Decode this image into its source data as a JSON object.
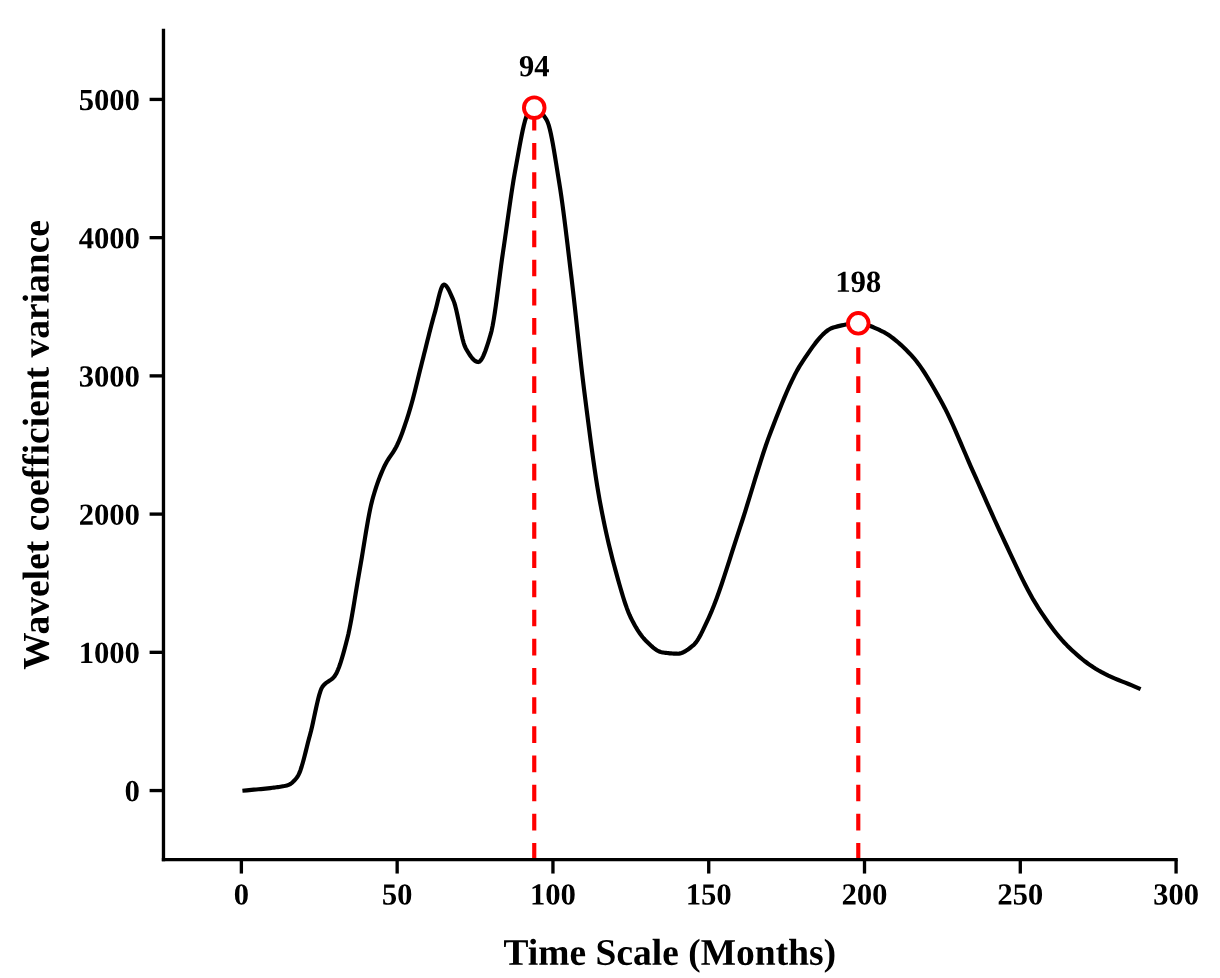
{
  "chart_data": {
    "type": "line",
    "xlabel": "Time Scale (Months)",
    "ylabel": "Wavelet coefficient variance",
    "xlim": [
      -25,
      300
    ],
    "xticks": [
      0,
      50,
      100,
      150,
      200,
      250,
      300
    ],
    "ylim": [
      -500,
      5500
    ],
    "yticks": [
      0,
      1000,
      2000,
      3000,
      4000,
      5000
    ],
    "grid": false,
    "legend": false,
    "series": [
      {
        "color": "#000000",
        "line_style": "solid",
        "x": [
          1,
          10,
          15,
          18,
          22,
          26,
          30,
          34,
          38,
          42,
          46,
          50,
          54,
          58,
          62,
          65,
          68,
          72,
          76,
          80,
          84,
          88,
          92,
          94,
          98,
          102,
          106,
          110,
          115,
          120,
          125,
          130,
          135,
          140,
          145,
          150,
          160,
          170,
          180,
          190,
          198,
          205,
          215,
          225,
          235,
          245,
          255,
          265,
          275,
          288
        ],
        "values": [
          0,
          20,
          40,
          100,
          400,
          750,
          830,
          1100,
          1600,
          2100,
          2350,
          2500,
          2750,
          3100,
          3450,
          3660,
          3550,
          3200,
          3100,
          3300,
          3900,
          4500,
          4900,
          4940,
          4850,
          4400,
          3700,
          2900,
          2100,
          1600,
          1250,
          1080,
          1000,
          990,
          1050,
          1250,
          1900,
          2600,
          3100,
          3350,
          3380,
          3330,
          3150,
          2800,
          2300,
          1800,
          1350,
          1050,
          870,
          740
        ]
      },
      {
        "type": "line",
        "color": "#ff0000",
        "line_style": "dashed",
        "x": [
          94,
          94
        ],
        "values": [
          -500,
          4940
        ]
      },
      {
        "type": "line",
        "color": "#ff0000",
        "line_style": "dashed",
        "x": [
          198,
          198
        ],
        "values": [
          -500,
          3380
        ]
      },
      {
        "type": "scatter",
        "color": "#ff0000",
        "marker": "circle",
        "x": [
          94,
          198
        ],
        "values": [
          4940,
          3380
        ]
      }
    ],
    "annotations": [
      {
        "text": "94",
        "x": 94,
        "y": 4940
      },
      {
        "text": "198",
        "x": 198,
        "y": 3380
      }
    ]
  }
}
